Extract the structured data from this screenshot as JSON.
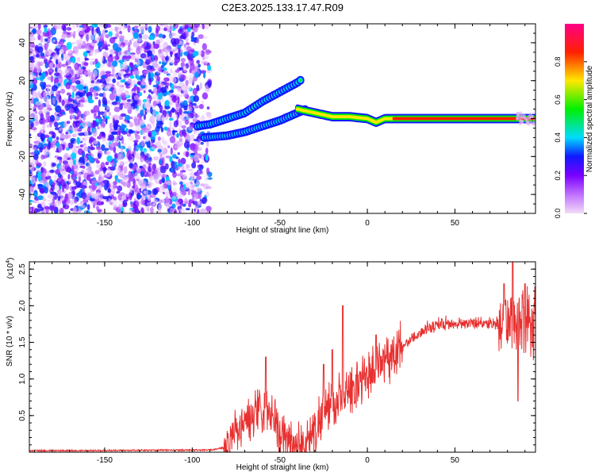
{
  "figure": {
    "title": "C2E3.2025.133.17.47.R09"
  },
  "chart_data": [
    {
      "type": "heatmap",
      "title": "C2E3.2025.133.17.47.R09",
      "xlabel": "Height of straight line (km)",
      "ylabel": "Frequency (Hz)",
      "xlim": [
        -193,
        96
      ],
      "ylim": [
        -50,
        50
      ],
      "xticks": [
        -150,
        -100,
        -50,
        0,
        50
      ],
      "yticks": [
        -40,
        -20,
        0,
        20,
        40
      ],
      "noise_region": {
        "x_from": -193,
        "x_to": -90,
        "amplitude_max": 0.4
      },
      "upper_branch": {
        "x": [
          -97,
          -90,
          -80,
          -70,
          -60,
          -50,
          -40,
          -37
        ],
        "y": [
          -4,
          -3,
          0,
          3,
          9,
          14,
          19,
          21
        ]
      },
      "lower_branch": {
        "x": [
          -93,
          -80,
          -70,
          -60,
          -50,
          -40,
          -35
        ],
        "y": [
          -10,
          -9,
          -7,
          -4,
          -1,
          3,
          5
        ]
      },
      "main_line": {
        "x": [
          -40,
          -30,
          -20,
          -10,
          0,
          5,
          10,
          15,
          50,
          96
        ],
        "y": [
          5,
          3,
          1,
          1,
          0,
          -2,
          0,
          0,
          0,
          0
        ],
        "amplitude": 0.95
      },
      "colorbar": {
        "label": "Normalized spectral amplitude",
        "range": [
          0,
          1
        ],
        "ticks": [
          "0.0",
          "0.2",
          "0.4",
          "0.6",
          "0.8"
        ],
        "colors": [
          "#f2dcf8",
          "#9a00ff",
          "#1018ff",
          "#00dcff",
          "#00f000",
          "#ffe800",
          "#ff2000",
          "#ff0088"
        ]
      }
    },
    {
      "type": "line",
      "xlabel": "Height of straight line (km)",
      "ylabel": "SNR (10 * v/v)",
      "y_exponent": "(x10",
      "y_exponent_power": "4",
      "y_exponent_close": ")",
      "xlim": [
        -193,
        96
      ],
      "ylim": [
        0,
        2.6
      ],
      "xticks": [
        -150,
        -100,
        -50,
        0,
        50
      ],
      "yticks": [
        0.5,
        1.0,
        1.5,
        2.0,
        2.5
      ],
      "ytick_labels": [
        "0.5",
        "1.0",
        "1.5",
        "2.0",
        "2.5"
      ],
      "color": "#e83030",
      "baseline_x": [
        -193,
        -90,
        -82,
        -78,
        -72,
        -66,
        -62,
        -58,
        -54,
        -50,
        -46,
        -42,
        -38,
        -34,
        -30,
        -26,
        -22,
        -18,
        -14,
        -10,
        -5,
        0,
        5,
        10,
        15,
        20,
        25,
        30,
        35,
        40,
        45,
        50,
        55,
        60,
        65,
        70,
        75,
        80,
        85,
        90,
        96
      ],
      "baseline_y": [
        0.02,
        0.03,
        0.06,
        0.15,
        0.35,
        0.45,
        0.5,
        0.6,
        0.4,
        0.25,
        0.15,
        0.1,
        0.1,
        0.12,
        0.35,
        0.5,
        0.6,
        0.7,
        0.75,
        0.85,
        0.95,
        1.05,
        1.15,
        1.25,
        1.35,
        1.45,
        1.55,
        1.62,
        1.7,
        1.75,
        1.76,
        1.75,
        1.76,
        1.77,
        1.76,
        1.77,
        1.76,
        1.78,
        1.8,
        1.7,
        1.7
      ],
      "spikes": [
        {
          "x": -58,
          "y": 1.3
        },
        {
          "x": -25,
          "y": 1.2
        },
        {
          "x": -20,
          "y": 1.4
        },
        {
          "x": -14,
          "y": 2.0
        },
        {
          "x": 5,
          "y": 1.6
        },
        {
          "x": 78,
          "y": 2.3
        },
        {
          "x": 83,
          "y": 2.6
        },
        {
          "x": 86,
          "y": 0.7
        },
        {
          "x": 90,
          "y": 2.3
        }
      ]
    }
  ]
}
